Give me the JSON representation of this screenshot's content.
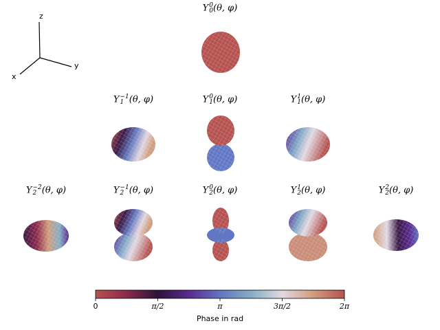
{
  "axes_icon": {
    "x": "x",
    "y": "y",
    "z": "z"
  },
  "chart_data": {
    "type": "surface",
    "colormap": "twilight_shifted",
    "colors": {
      "positive_real": "#b5524f",
      "negative_real": "#6177c4"
    },
    "plots": [
      {
        "l": 0,
        "m": 0,
        "title_l": "0",
        "title_m": "0",
        "args": "(θ, φ)"
      },
      {
        "l": 1,
        "m": -1,
        "title_l": "1",
        "title_m": "−1",
        "args": "(θ, φ)"
      },
      {
        "l": 1,
        "m": 0,
        "title_l": "1",
        "title_m": "0",
        "args": "(θ, φ)"
      },
      {
        "l": 1,
        "m": 1,
        "title_l": "1",
        "title_m": "1",
        "args": "(θ, φ)"
      },
      {
        "l": 2,
        "m": -2,
        "title_l": "2",
        "title_m": "−2",
        "args": "(θ, φ)"
      },
      {
        "l": 2,
        "m": -1,
        "title_l": "2",
        "title_m": "−1",
        "args": "(θ, φ)"
      },
      {
        "l": 2,
        "m": 0,
        "title_l": "2",
        "title_m": "0",
        "args": "(θ, φ)"
      },
      {
        "l": 2,
        "m": 1,
        "title_l": "2",
        "title_m": "1",
        "args": "(θ, φ)"
      },
      {
        "l": 2,
        "m": 2,
        "title_l": "2",
        "title_m": "2",
        "args": "(θ, φ)"
      }
    ],
    "colorbar": {
      "label": "Phase in rad",
      "range": [
        0,
        6.2832
      ],
      "ticks": [
        "0",
        "π/2",
        "π",
        "3π/2",
        "2π"
      ]
    }
  }
}
